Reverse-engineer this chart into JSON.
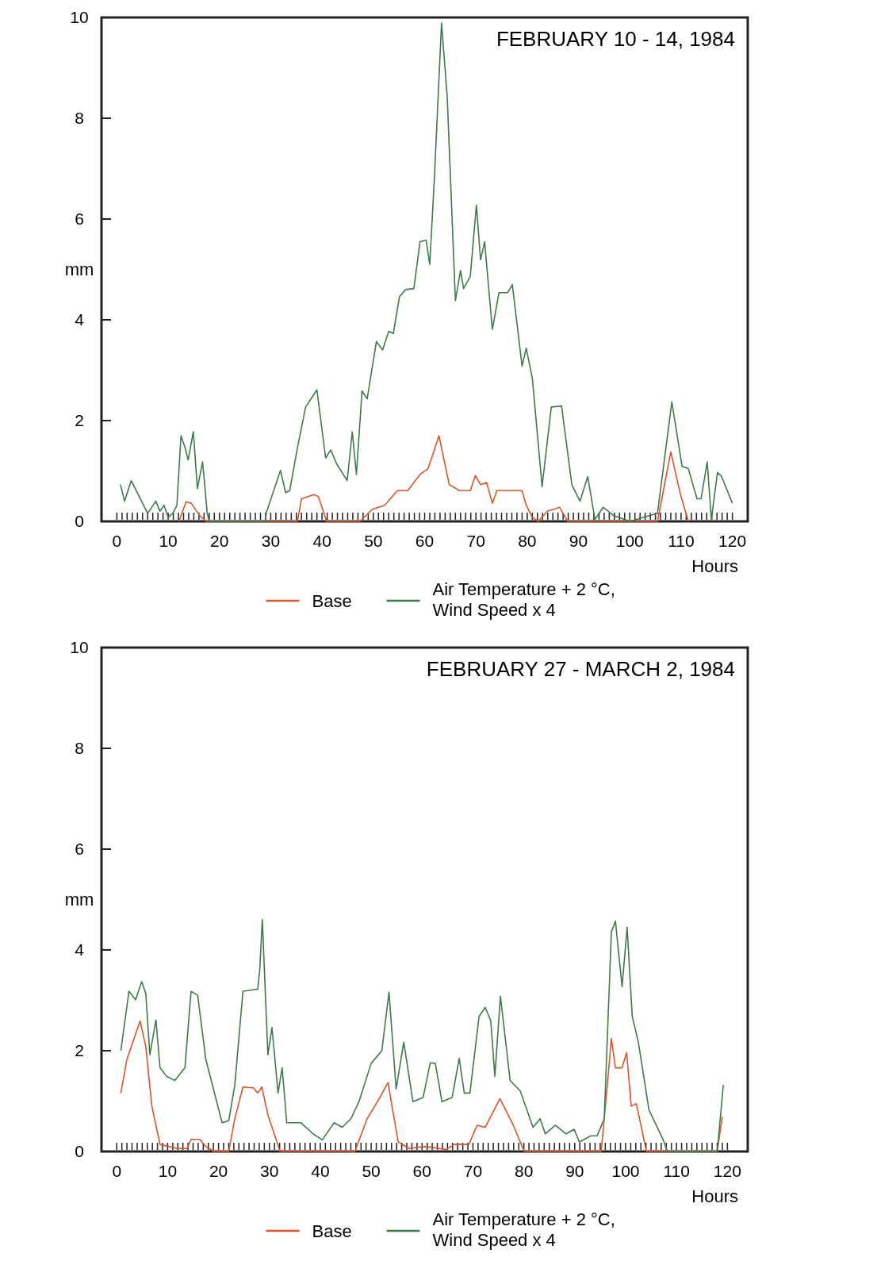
{
  "chart_data": [
    {
      "type": "line",
      "title": "FEBRUARY 10 - 14, 1984",
      "xlabel": "Hours",
      "ylabel": "mm",
      "xlim": [
        -3,
        123
      ],
      "ylim": [
        0,
        10
      ],
      "yticks": [
        0,
        2,
        4,
        6,
        8,
        10
      ],
      "legend": "bottom",
      "xticks": [
        0,
        {
          "value": 1,
          "label": null
        },
        {
          "value": 2,
          "label": null
        },
        {
          "value": 3,
          "label": null
        },
        {
          "value": 4,
          "label": null
        },
        {
          "value": 5,
          "label": null
        },
        {
          "value": 6,
          "label": null
        },
        {
          "value": 7,
          "label": null
        },
        {
          "value": 8,
          "label": null
        },
        {
          "value": 9,
          "label": null
        },
        10,
        {
          "value": 11,
          "label": null
        },
        {
          "value": 12,
          "label": null
        },
        {
          "value": 13,
          "label": null
        },
        {
          "value": 14,
          "label": null
        },
        {
          "value": 15,
          "label": null
        },
        {
          "value": 16,
          "label": null
        },
        {
          "value": 17,
          "label": null
        },
        {
          "value": 18,
          "label": null
        },
        {
          "value": 19,
          "label": null
        },
        20,
        {
          "value": 21,
          "label": null
        },
        {
          "value": 22,
          "label": null
        },
        {
          "value": 23,
          "label": null
        },
        {
          "value": 24,
          "label": null
        },
        {
          "value": 25,
          "label": null
        },
        {
          "value": 26,
          "label": null
        },
        {
          "value": 27,
          "label": null
        },
        {
          "value": 28,
          "label": null
        },
        {
          "value": 29,
          "label": null
        },
        30,
        {
          "value": 31,
          "label": null
        },
        {
          "value": 32,
          "label": null
        },
        {
          "value": 33,
          "label": null
        },
        {
          "value": 34,
          "label": null
        },
        {
          "value": 35,
          "label": null
        },
        {
          "value": 36,
          "label": null
        },
        {
          "value": 37,
          "label": null
        },
        {
          "value": 38,
          "label": null
        },
        {
          "value": 39,
          "label": null
        },
        40,
        {
          "value": 41,
          "label": null
        },
        {
          "value": 42,
          "label": null
        },
        {
          "value": 43,
          "label": null
        },
        {
          "value": 44,
          "label": null
        },
        {
          "value": 45,
          "label": null
        },
        {
          "value": 46,
          "label": null
        },
        {
          "value": 47,
          "label": null
        },
        {
          "value": 48,
          "label": null
        },
        {
          "value": 49,
          "label": null
        },
        50,
        {
          "value": 51,
          "label": null
        },
        {
          "value": 52,
          "label": null
        },
        {
          "value": 53,
          "label": null
        },
        {
          "value": 54,
          "label": null
        },
        {
          "value": 55,
          "label": null
        },
        {
          "value": 56,
          "label": null
        },
        {
          "value": 57,
          "label": null
        },
        {
          "value": 58,
          "label": null
        },
        {
          "value": 59,
          "label": null
        },
        60,
        {
          "value": 61,
          "label": null
        },
        {
          "value": 62,
          "label": null
        },
        {
          "value": 63,
          "label": null
        },
        {
          "value": 64,
          "label": null
        },
        {
          "value": 65,
          "label": null
        },
        {
          "value": 66,
          "label": null
        },
        {
          "value": 67,
          "label": null
        },
        {
          "value": 68,
          "label": null
        },
        {
          "value": 69,
          "label": null
        },
        70,
        {
          "value": 71,
          "label": null
        },
        {
          "value": 72,
          "label": null
        },
        {
          "value": 73,
          "label": null
        },
        {
          "value": 74,
          "label": null
        },
        {
          "value": 75,
          "label": null
        },
        {
          "value": 76,
          "label": null
        },
        {
          "value": 77,
          "label": null
        },
        {
          "value": 78,
          "label": null
        },
        {
          "value": 79,
          "label": null
        },
        80,
        {
          "value": 81,
          "label": null
        },
        {
          "value": 82,
          "label": null
        },
        {
          "value": 83,
          "label": null
        },
        {
          "value": 84,
          "label": null
        },
        {
          "value": 85,
          "label": null
        },
        {
          "value": 86,
          "label": null
        },
        {
          "value": 87,
          "label": null
        },
        {
          "value": 88,
          "label": null
        },
        {
          "value": 89,
          "label": null
        },
        90,
        {
          "value": 91,
          "label": null
        },
        {
          "value": 92,
          "label": null
        },
        {
          "value": 93,
          "label": null
        },
        {
          "value": 94,
          "label": null
        },
        {
          "value": 95,
          "label": null
        },
        {
          "value": 96,
          "label": null
        },
        {
          "value": 97,
          "label": null
        },
        {
          "value": 98,
          "label": null
        },
        {
          "value": 99,
          "label": null
        },
        100,
        {
          "value": 101,
          "label": null
        },
        {
          "value": 102,
          "label": null
        },
        {
          "value": 103,
          "label": null
        },
        {
          "value": 104,
          "label": null
        },
        {
          "value": 105,
          "label": null
        },
        {
          "value": 106,
          "label": null
        },
        {
          "value": 107,
          "label": null
        },
        {
          "value": 108,
          "label": null
        },
        {
          "value": 109,
          "label": null
        },
        110,
        {
          "value": 111,
          "label": null
        },
        {
          "value": 112,
          "label": null
        },
        {
          "value": 113,
          "label": null
        },
        {
          "value": 114,
          "label": null
        },
        {
          "value": 115,
          "label": null
        },
        {
          "value": 116,
          "label": null
        },
        {
          "value": 117,
          "label": null
        },
        {
          "value": 118,
          "label": null
        },
        {
          "value": 119,
          "label": null
        },
        120
      ],
      "series": [
        {
          "name": "Base",
          "color": "#d9542b",
          "x": [
            12.1,
            13.5,
            14.5,
            16.1,
            17.4,
            35.2,
            36,
            38.4,
            39.3,
            40.9,
            47.4,
            49.8,
            52.2,
            54.7,
            56.7,
            59.1,
            60.7,
            62.8,
            64.8,
            66.8,
            68.9,
            69.9,
            70.9,
            72.1,
            73.2,
            74.1,
            79,
            79.8,
            81,
            82.2,
            83.9,
            86.3,
            87.9,
            105.4,
            108,
            109.8,
            111.4
          ],
          "values": [
            0,
            0.39,
            0.36,
            0.12,
            0,
            0,
            0.45,
            0.53,
            0.49,
            0,
            0,
            0.24,
            0.32,
            0.61,
            0.61,
            0.93,
            1.05,
            1.7,
            0.73,
            0.61,
            0.61,
            0.91,
            0.73,
            0.77,
            0.36,
            0.61,
            0.61,
            0.32,
            0.08,
            0,
            0.2,
            0.28,
            0,
            0,
            1.38,
            0.57,
            0
          ]
        },
        {
          "name": "Air Temperature + 2 °C, Wind Speed x 4",
          "color": "#3f7a4a",
          "x": [
            0.7,
            1.5,
            2.8,
            6,
            7.6,
            8.4,
            9.2,
            10,
            10.9,
            11.7,
            12.5,
            13.3,
            13.9,
            14.9,
            15.7,
            16.7,
            17.2,
            17.6,
            18,
            29,
            29.1,
            31.9,
            32.9,
            33.7,
            35.2,
            36.8,
            39,
            40.7,
            41.7,
            42.9,
            44.9,
            45.9,
            46.7,
            47.8,
            48.8,
            50.6,
            51.8,
            53,
            53.9,
            55.1,
            56.3,
            57.9,
            59.1,
            60.3,
            61,
            61.9,
            63.3,
            64.4,
            66,
            67,
            67.6,
            68.9,
            70.1,
            70.9,
            71.7,
            73.2,
            74.5,
            76.2,
            77.1,
            79,
            79.8,
            81,
            82.9,
            84.7,
            86.7,
            88.7,
            90.3,
            91.8,
            93.2,
            94.8,
            96.8,
            100,
            105.4,
            108.2,
            110.2,
            111.4,
            113.1,
            113.9,
            115.1,
            115.9,
            117.1,
            117.9,
            120
          ],
          "values": [
            0.73,
            0.4,
            0.81,
            0.16,
            0.4,
            0.2,
            0.32,
            0.08,
            0.16,
            0.32,
            1.7,
            1.46,
            1.22,
            1.78,
            0.65,
            1.18,
            0.65,
            0.16,
            0,
            0,
            0.16,
            1.01,
            0.57,
            0.61,
            1.46,
            2.27,
            2.61,
            1.26,
            1.42,
            1.13,
            0.81,
            1.78,
            0.93,
            2.59,
            2.43,
            3.57,
            3.4,
            3.77,
            3.73,
            4.46,
            4.6,
            4.62,
            5.55,
            5.58,
            5.1,
            6.8,
            9.89,
            8.43,
            4.38,
            4.98,
            4.62,
            4.86,
            6.28,
            5.19,
            5.55,
            3.81,
            4.54,
            4.54,
            4.7,
            3.08,
            3.44,
            2.84,
            0.69,
            2.27,
            2.29,
            0.73,
            0.4,
            0.89,
            0.04,
            0.28,
            0.12,
            0,
            0.16,
            2.37,
            1.09,
            1.05,
            0.45,
            0.45,
            1.18,
            0.04,
            0.97,
            0.89,
            0.36
          ]
        }
      ]
    },
    {
      "type": "line",
      "title": "FEBRUARY 27 - MARCH 2, 1984",
      "xlabel": "Hours",
      "ylabel": "mm",
      "xlim": [
        -3,
        124
      ],
      "ylim": [
        0,
        10
      ],
      "yticks": [
        0,
        2,
        4,
        6,
        8,
        10
      ],
      "legend": "bottom",
      "xticks": [
        0,
        {
          "value": 1,
          "label": null
        },
        {
          "value": 2,
          "label": null
        },
        {
          "value": 3,
          "label": null
        },
        {
          "value": 4,
          "label": null
        },
        {
          "value": 5,
          "label": null
        },
        {
          "value": 6,
          "label": null
        },
        {
          "value": 7,
          "label": null
        },
        {
          "value": 8,
          "label": null
        },
        {
          "value": 9,
          "label": null
        },
        10,
        {
          "value": 11,
          "label": null
        },
        {
          "value": 12,
          "label": null
        },
        {
          "value": 13,
          "label": null
        },
        {
          "value": 14,
          "label": null
        },
        {
          "value": 15,
          "label": null
        },
        {
          "value": 16,
          "label": null
        },
        {
          "value": 17,
          "label": null
        },
        {
          "value": 18,
          "label": null
        },
        {
          "value": 19,
          "label": null
        },
        20,
        {
          "value": 21,
          "label": null
        },
        {
          "value": 22,
          "label": null
        },
        {
          "value": 23,
          "label": null
        },
        {
          "value": 24,
          "label": null
        },
        {
          "value": 25,
          "label": null
        },
        {
          "value": 26,
          "label": null
        },
        {
          "value": 27,
          "label": null
        },
        {
          "value": 28,
          "label": null
        },
        {
          "value": 29,
          "label": null
        },
        30,
        {
          "value": 31,
          "label": null
        },
        {
          "value": 32,
          "label": null
        },
        {
          "value": 33,
          "label": null
        },
        {
          "value": 34,
          "label": null
        },
        {
          "value": 35,
          "label": null
        },
        {
          "value": 36,
          "label": null
        },
        {
          "value": 37,
          "label": null
        },
        {
          "value": 38,
          "label": null
        },
        {
          "value": 39,
          "label": null
        },
        40,
        {
          "value": 41,
          "label": null
        },
        {
          "value": 42,
          "label": null
        },
        {
          "value": 43,
          "label": null
        },
        {
          "value": 44,
          "label": null
        },
        {
          "value": 45,
          "label": null
        },
        {
          "value": 46,
          "label": null
        },
        {
          "value": 47,
          "label": null
        },
        {
          "value": 48,
          "label": null
        },
        {
          "value": 49,
          "label": null
        },
        50,
        {
          "value": 51,
          "label": null
        },
        {
          "value": 52,
          "label": null
        },
        {
          "value": 53,
          "label": null
        },
        {
          "value": 54,
          "label": null
        },
        {
          "value": 55,
          "label": null
        },
        {
          "value": 56,
          "label": null
        },
        {
          "value": 57,
          "label": null
        },
        {
          "value": 58,
          "label": null
        },
        {
          "value": 59,
          "label": null
        },
        60,
        {
          "value": 61,
          "label": null
        },
        {
          "value": 62,
          "label": null
        },
        {
          "value": 63,
          "label": null
        },
        {
          "value": 64,
          "label": null
        },
        {
          "value": 65,
          "label": null
        },
        {
          "value": 66,
          "label": null
        },
        {
          "value": 67,
          "label": null
        },
        {
          "value": 68,
          "label": null
        },
        {
          "value": 69,
          "label": null
        },
        70,
        {
          "value": 71,
          "label": null
        },
        {
          "value": 72,
          "label": null
        },
        {
          "value": 73,
          "label": null
        },
        {
          "value": 74,
          "label": null
        },
        {
          "value": 75,
          "label": null
        },
        {
          "value": 76,
          "label": null
        },
        {
          "value": 77,
          "label": null
        },
        {
          "value": 78,
          "label": null
        },
        {
          "value": 79,
          "label": null
        },
        80,
        {
          "value": 81,
          "label": null
        },
        {
          "value": 82,
          "label": null
        },
        {
          "value": 83,
          "label": null
        },
        {
          "value": 84,
          "label": null
        },
        {
          "value": 85,
          "label": null
        },
        {
          "value": 86,
          "label": null
        },
        {
          "value": 87,
          "label": null
        },
        {
          "value": 88,
          "label": null
        },
        {
          "value": 89,
          "label": null
        },
        90,
        {
          "value": 91,
          "label": null
        },
        {
          "value": 92,
          "label": null
        },
        {
          "value": 93,
          "label": null
        },
        {
          "value": 94,
          "label": null
        },
        {
          "value": 95,
          "label": null
        },
        {
          "value": 96,
          "label": null
        },
        {
          "value": 97,
          "label": null
        },
        {
          "value": 98,
          "label": null
        },
        {
          "value": 99,
          "label": null
        },
        100,
        {
          "value": 101,
          "label": null
        },
        {
          "value": 102,
          "label": null
        },
        {
          "value": 103,
          "label": null
        },
        {
          "value": 104,
          "label": null
        },
        {
          "value": 105,
          "label": null
        },
        {
          "value": 106,
          "label": null
        },
        {
          "value": 107,
          "label": null
        },
        {
          "value": 108,
          "label": null
        },
        {
          "value": 109,
          "label": null
        },
        110,
        {
          "value": 111,
          "label": null
        },
        {
          "value": 112,
          "label": null
        },
        {
          "value": 113,
          "label": null
        },
        {
          "value": 114,
          "label": null
        },
        {
          "value": 115,
          "label": null
        },
        {
          "value": 116,
          "label": null
        },
        {
          "value": 117,
          "label": null
        },
        {
          "value": 118,
          "label": null
        },
        {
          "value": 119,
          "label": null
        },
        120
      ],
      "series": [
        {
          "name": "Base",
          "color": "#d9542b",
          "x": [
            0.8,
            2,
            4.6,
            5.7,
            6.9,
            8.5,
            11.8,
            13.8,
            14.6,
            16.3,
            17.5,
            19.1,
            22,
            23.2,
            24.8,
            26.9,
            27.7,
            28.5,
            29.7,
            32.1,
            46.8,
            49.2,
            51.7,
            53.3,
            55.3,
            57.4,
            60.6,
            64.7,
            66.3,
            69.2,
            70.8,
            72.4,
            75.3,
            77.7,
            80.1,
            95.2,
            96.4,
            97.2,
            98,
            99.3,
            100.2,
            101.1,
            102.1,
            104.1,
            118,
            119
          ],
          "values": [
            1.16,
            1.83,
            2.59,
            2.08,
            0.9,
            0.14,
            0.06,
            0.06,
            0.24,
            0.24,
            0.1,
            0,
            0,
            0.65,
            1.28,
            1.26,
            1.16,
            1.28,
            0.73,
            0,
            0,
            0.65,
            1.07,
            1.37,
            0.19,
            0.06,
            0.1,
            0.04,
            0.14,
            0.14,
            0.52,
            0.48,
            1.05,
            0.57,
            0,
            0,
            1.32,
            2.24,
            1.66,
            1.66,
            1.96,
            0.9,
            0.95,
            0,
            0,
            0.69
          ]
        },
        {
          "name": "Air Temperature + 2 °C, Wind Speed x 4",
          "color": "#3f7a4a",
          "x": [
            0.8,
            2.4,
            3.7,
            4.9,
            5.7,
            6.5,
            7.7,
            8.5,
            9.8,
            11.4,
            13.4,
            14.6,
            15.9,
            17.5,
            20.7,
            22,
            23.2,
            24.8,
            27.7,
            28.1,
            28.6,
            29.7,
            30.5,
            31.7,
            32.5,
            33.4,
            36.2,
            38.6,
            40.4,
            42.7,
            44.3,
            46,
            47.6,
            50,
            52.1,
            53.5,
            54.9,
            56.4,
            58.2,
            60.2,
            61.6,
            62.6,
            63.9,
            65.9,
            67.3,
            68.3,
            69.4,
            71.2,
            72.4,
            73.5,
            74.3,
            75.4,
            77.3,
            79.3,
            81.8,
            83.2,
            84.2,
            86.2,
            88.3,
            89.9,
            90.9,
            93.2,
            94.4,
            95.8,
            97.2,
            98,
            99.3,
            100.3,
            101.3,
            102.5,
            104.6,
            107.4,
            108.2,
            118,
            119.2
          ],
          "values": [
            2,
            3.18,
            3.01,
            3.37,
            3.14,
            1.92,
            2.61,
            1.66,
            1.49,
            1.41,
            1.66,
            3.18,
            3.1,
            1.83,
            0.57,
            0.61,
            1.32,
            3.18,
            3.22,
            3.6,
            4.6,
            1.92,
            2.46,
            1.16,
            1.66,
            0.57,
            0.57,
            0.35,
            0.23,
            0.57,
            0.48,
            0.65,
            0.99,
            1.75,
            2,
            3.16,
            1.24,
            2.17,
            0.99,
            1.07,
            1.76,
            1.75,
            0.99,
            1.07,
            1.85,
            1.16,
            1.16,
            2.68,
            2.86,
            2.59,
            1.49,
            3.08,
            1.41,
            1.2,
            0.48,
            0.65,
            0.35,
            0.52,
            0.35,
            0.44,
            0.19,
            0.31,
            0.31,
            0.65,
            4.36,
            4.57,
            3.27,
            4.45,
            2.68,
            2.17,
            0.82,
            0.23,
            0,
            0,
            1.32
          ]
        }
      ]
    }
  ]
}
